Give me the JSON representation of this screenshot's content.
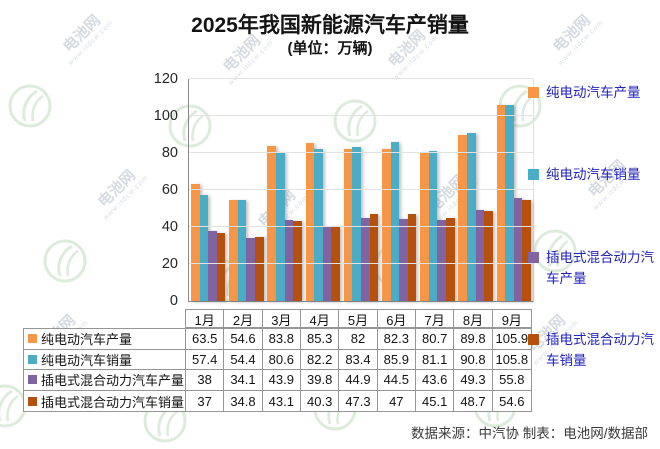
{
  "title": "2025年我国新能源汽车产销量",
  "subtitle": "(单位：万辆)",
  "footer": {
    "text": "数据来源：中汽协  制表：电池网/数据部"
  },
  "watermark": {
    "text": "电池网",
    "url": "www.itdcw.com"
  },
  "colors": {
    "bev_production": "#F79646",
    "bev_sales": "#4BACC6",
    "phev_production": "#8064A2",
    "phev_sales": "#B5510D",
    "legend_text": "#2323BE",
    "gridline": "#E2E2E2",
    "axis": "#898989",
    "table_border": "#969696"
  },
  "chart_data": {
    "type": "bar",
    "title": "2025年我国新能源汽车产销量",
    "subtitle": "(单位：万辆)",
    "categories": [
      "1月",
      "2月",
      "3月",
      "4月",
      "5月",
      "6月",
      "7月",
      "8月",
      "9月"
    ],
    "series": [
      {
        "name": "纯电动汽车产量",
        "color": "#F79646",
        "values": [
          63.5,
          54.6,
          83.8,
          85.3,
          82,
          82.3,
          80.7,
          89.8,
          105.9
        ]
      },
      {
        "name": "纯电动汽车销量",
        "color": "#4BACC6",
        "values": [
          57.4,
          54.4,
          80.6,
          82.2,
          83.4,
          85.9,
          81.1,
          90.8,
          105.8
        ]
      },
      {
        "name": "插电式混合动力汽车产量",
        "color": "#8064A2",
        "values": [
          38,
          34.1,
          43.9,
          39.8,
          44.9,
          44.5,
          43.6,
          49.3,
          55.8
        ]
      },
      {
        "name": "插电式混合动力汽车销量",
        "color": "#B5510D",
        "values": [
          37,
          34.8,
          43.1,
          40.3,
          47.3,
          47,
          45.1,
          48.7,
          54.6
        ]
      }
    ],
    "xlabel": "",
    "ylabel": "",
    "ylim": [
      0,
      120
    ],
    "yticks": [
      0,
      20,
      40,
      60,
      80,
      100,
      120
    ],
    "grid": true,
    "legend_position": "right",
    "data_table_shown": true
  }
}
